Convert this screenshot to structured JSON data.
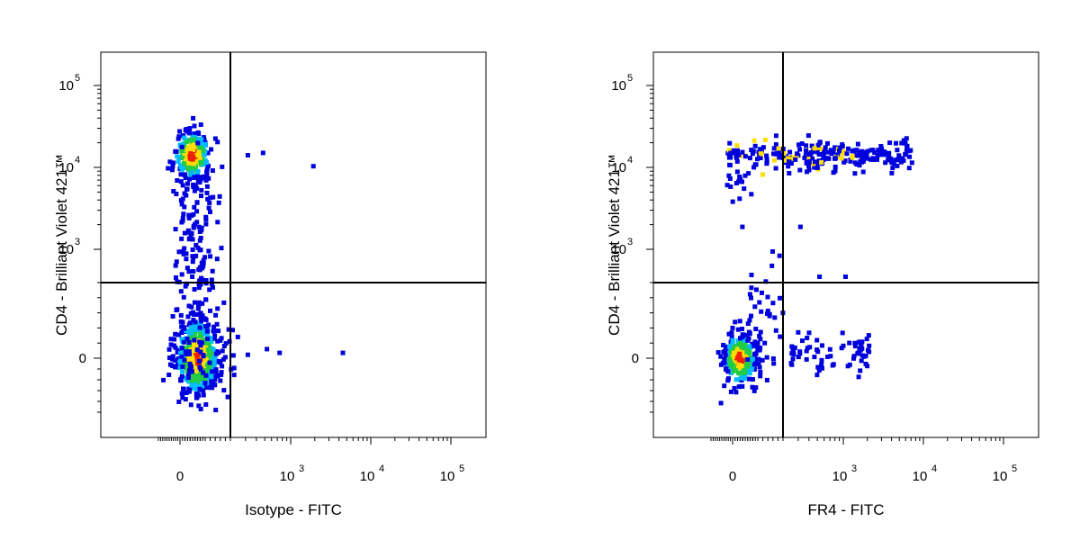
{
  "chart_data": [
    {
      "type": "scatter",
      "xlabel": "Isotype - FITC",
      "ylabel": "CD4 - Brilliant Violet 421™",
      "x_scale": "biexponential",
      "y_scale": "biexponential",
      "x_tick_labels": [
        {
          "base": "0",
          "exp": ""
        },
        {
          "base": "10",
          "exp": "3"
        },
        {
          "base": "10",
          "exp": "4"
        },
        {
          "base": "10",
          "exp": "5"
        }
      ],
      "y_tick_labels": [
        {
          "base": "0",
          "exp": ""
        },
        {
          "base": "10",
          "exp": "3"
        },
        {
          "base": "10",
          "exp": "4"
        },
        {
          "base": "10",
          "exp": "5"
        }
      ],
      "gate": {
        "x": 200,
        "y": 400
      },
      "grid": false,
      "series": [
        {
          "color": "density",
          "populations": [
            {
              "x_center": 60,
              "y_center": 15000,
              "count": "dense",
              "x_spread": "low",
              "y_spread": "low"
            },
            {
              "x_center": 80,
              "y_center": 20,
              "count": "very dense",
              "x_spread": "low",
              "y_spread": "medium"
            }
          ],
          "outliers": [
            {
              "x": 300,
              "y": 15000
            },
            {
              "x": 450,
              "y": 16000
            },
            {
              "x": 1800,
              "y": 11000
            },
            {
              "x": 300,
              "y": 30
            },
            {
              "x": 500,
              "y": 60
            },
            {
              "x": 700,
              "y": 40
            },
            {
              "x": 4200,
              "y": 40
            }
          ]
        }
      ]
    },
    {
      "type": "scatter",
      "xlabel": "FR4 - FITC",
      "ylabel": "CD4 - Brilliant Violet 421™",
      "x_scale": "biexponential",
      "y_scale": "biexponential",
      "x_tick_labels": [
        {
          "base": "0",
          "exp": ""
        },
        {
          "base": "10",
          "exp": "3"
        },
        {
          "base": "10",
          "exp": "4"
        },
        {
          "base": "10",
          "exp": "5"
        }
      ],
      "y_tick_labels": [
        {
          "base": "0",
          "exp": ""
        },
        {
          "base": "10",
          "exp": "3"
        },
        {
          "base": "10",
          "exp": "4"
        },
        {
          "base": "10",
          "exp": "5"
        }
      ],
      "gate": {
        "x": 200,
        "y": 400
      },
      "grid": false,
      "series": [
        {
          "color": "density",
          "populations": [
            {
              "x_center": 30,
              "y_center": 15000,
              "x_range": [
                0,
                6500
              ],
              "count": "medium",
              "spread": "horizontal band"
            },
            {
              "x_center": 50,
              "y_center": 10,
              "count": "dense",
              "x_spread": "low",
              "y_spread": "low"
            },
            {
              "x_center": 600,
              "y_center": 40,
              "x_range": [
                200,
                1800
              ],
              "count": "sparse",
              "spread": "horizontal band"
            }
          ],
          "outliers": [
            {
              "x": 30,
              "y": 2000
            },
            {
              "x": 300,
              "y": 2000
            },
            {
              "x": 150,
              "y": 1000
            },
            {
              "x": 1000,
              "y": 500
            },
            {
              "x": 500,
              "y": 500
            }
          ]
        }
      ]
    }
  ],
  "colors": {
    "low": "#0000dd",
    "mid_low": "#00bbff",
    "mid": "#22cc44",
    "mid_high": "#ffdd00",
    "high": "#ee2200"
  }
}
